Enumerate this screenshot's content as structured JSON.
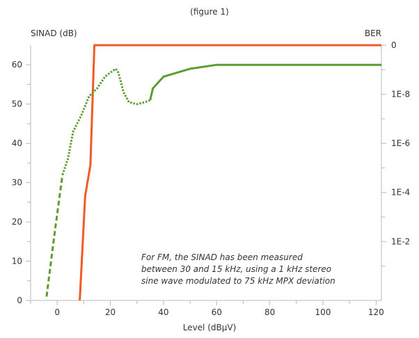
{
  "chart_data": {
    "type": "line",
    "caption": "(figure 1)",
    "xlabel": "Level (dBµV)",
    "ylabel": "SINAD (dB)",
    "y2label": "BER",
    "xlim": [
      -10,
      122
    ],
    "ylim": [
      0,
      65
    ],
    "x_ticks": [
      0,
      20,
      40,
      60,
      80,
      100,
      120
    ],
    "y_ticks": [
      0,
      10,
      20,
      30,
      40,
      50,
      60
    ],
    "y2_ticks": [
      {
        "label": "0",
        "at_sinad": 65
      },
      {
        "label": "1E-8",
        "at_sinad": 52.5
      },
      {
        "label": "1E-6",
        "at_sinad": 40
      },
      {
        "label": "1E-4",
        "at_sinad": 27.5
      },
      {
        "label": "1E-2",
        "at_sinad": 15
      }
    ],
    "grid": false,
    "series": [
      {
        "axis": "right",
        "color": "#f05a28",
        "style": "solid",
        "points": [
          [
            8.5,
            0
          ],
          [
            10.5,
            26.5
          ],
          [
            12.5,
            34.5
          ],
          [
            14,
            65
          ],
          [
            122,
            65
          ]
        ]
      },
      {
        "axis": "left",
        "color": "#5a9e2f",
        "style": "dashed",
        "points": [
          [
            -4,
            1
          ],
          [
            -1,
            17
          ],
          [
            2,
            32
          ]
        ]
      },
      {
        "axis": "left",
        "color": "#5a9e2f",
        "style": "dotted",
        "points": [
          [
            2,
            32
          ],
          [
            4,
            36
          ],
          [
            6,
            43
          ],
          [
            9,
            47
          ],
          [
            12,
            52
          ],
          [
            15,
            54
          ],
          [
            18,
            57
          ],
          [
            20,
            58
          ],
          [
            22,
            59
          ],
          [
            23,
            58
          ],
          [
            25,
            53
          ],
          [
            27,
            50.5
          ],
          [
            30,
            50
          ],
          [
            33,
            50.5
          ],
          [
            35,
            51
          ]
        ]
      },
      {
        "axis": "left",
        "color": "#5a9e2f",
        "style": "solid",
        "points": [
          [
            35,
            51
          ],
          [
            36,
            54
          ],
          [
            40,
            57
          ],
          [
            50,
            59
          ],
          [
            60,
            60
          ],
          [
            122,
            60
          ]
        ]
      }
    ],
    "annotation": [
      "For FM, the SINAD has been measured",
      "between 30 and 15 kHz, using a 1 kHz stereo",
      "sine wave modulated to 75 kHz MPX deviation"
    ]
  }
}
